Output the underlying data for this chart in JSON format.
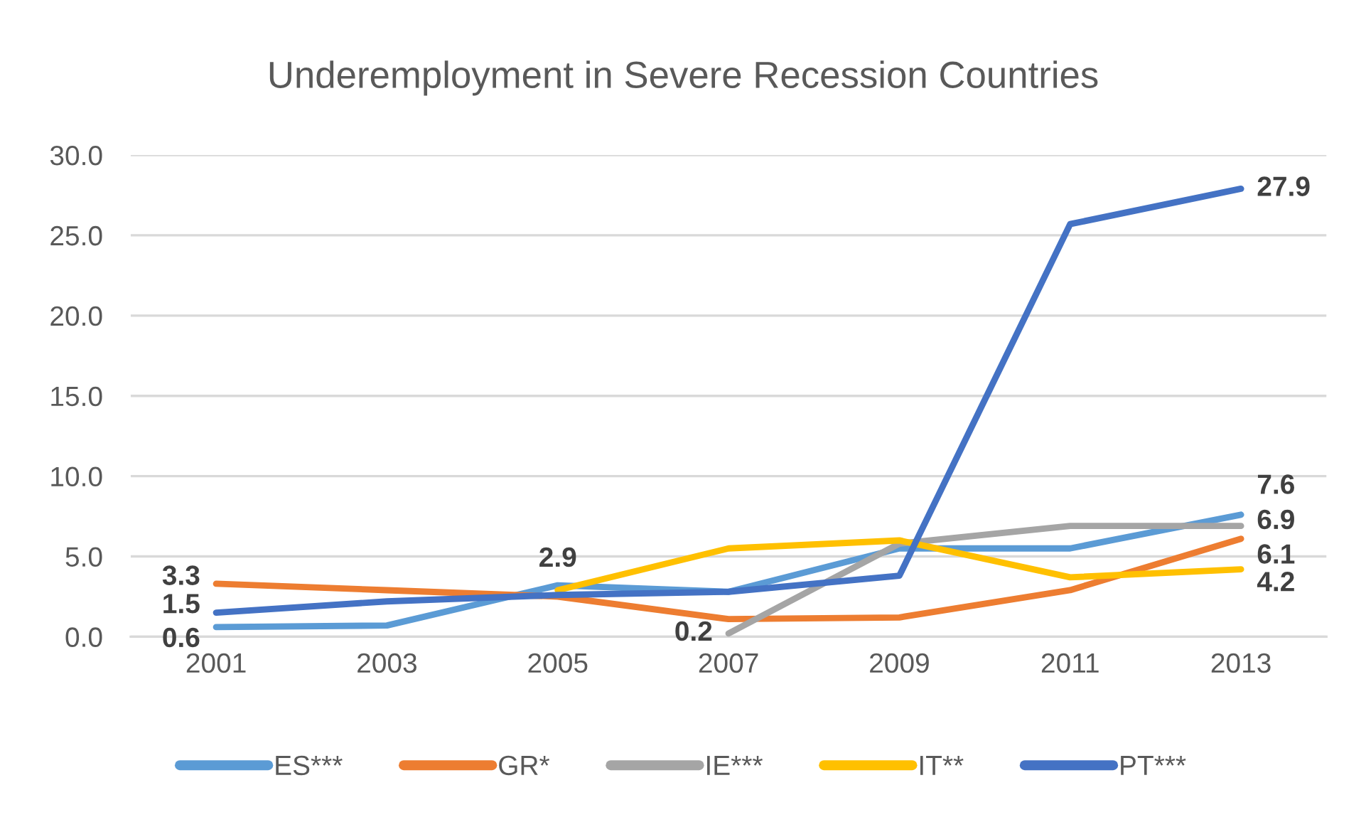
{
  "chart_data": {
    "type": "line",
    "title": "Underemployment in Severe Recession Countries",
    "categories": [
      "2001",
      "2003",
      "2005",
      "2007",
      "2009",
      "2011",
      "2013"
    ],
    "series": [
      {
        "name": "ES***",
        "color": "#5B9BD5",
        "values": [
          0.6,
          0.7,
          3.2,
          2.8,
          5.5,
          5.5,
          7.6
        ],
        "value_labels": [
          "0.6",
          null,
          null,
          null,
          null,
          null,
          "7.6"
        ]
      },
      {
        "name": "GR*",
        "color": "#ED7D31",
        "values": [
          3.3,
          2.9,
          2.5,
          1.1,
          1.2,
          2.9,
          6.1
        ],
        "value_labels": [
          "3.3",
          null,
          null,
          null,
          null,
          null,
          "6.1"
        ]
      },
      {
        "name": "IE***",
        "color": "#A5A5A5",
        "values": [
          null,
          null,
          null,
          0.2,
          5.8,
          6.9,
          6.9
        ],
        "value_labels": [
          null,
          null,
          null,
          "0.2",
          null,
          null,
          "6.9"
        ]
      },
      {
        "name": "IT**",
        "color": "#FFC000",
        "values": [
          null,
          null,
          2.9,
          5.5,
          6.0,
          3.7,
          4.2
        ],
        "value_labels": [
          null,
          null,
          "2.9",
          null,
          null,
          null,
          "4.2"
        ]
      },
      {
        "name": "PT***",
        "color": "#4472C4",
        "values": [
          1.5,
          2.2,
          2.6,
          2.8,
          3.8,
          25.7,
          27.9
        ],
        "value_labels": [
          "1.5",
          null,
          null,
          null,
          null,
          null,
          "27.9"
        ]
      }
    ],
    "ylim": [
      0,
      30
    ],
    "yticks": [
      {
        "value": 0,
        "label": "0.0"
      },
      {
        "value": 5,
        "label": "5.0"
      },
      {
        "value": 10,
        "label": "10.0"
      },
      {
        "value": 15,
        "label": "15.0"
      },
      {
        "value": 20,
        "label": "20.0"
      },
      {
        "value": 25,
        "label": "25.0"
      },
      {
        "value": 30,
        "label": "30.0"
      }
    ],
    "grid": "y",
    "legend": "bottom",
    "line_style": "solid"
  }
}
